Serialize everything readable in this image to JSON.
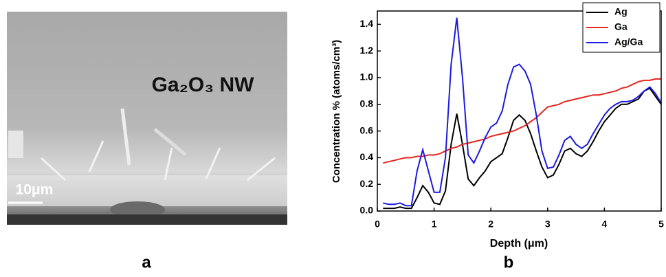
{
  "image": {
    "label": "Ga₂O₃ NW",
    "scale_bar": "10μm",
    "panel_label": "a"
  },
  "chart_data": {
    "type": "line",
    "panel_label": "b",
    "x_label": "Depth (μm)",
    "y_label": "Concentration % (atoms/cm³)",
    "xlim": [
      0,
      5
    ],
    "xticks": [
      0,
      1,
      2,
      3,
      4,
      5
    ],
    "ylim": [
      0,
      1.5
    ],
    "yticks": [
      {
        "value": 0,
        "label": "0.0"
      },
      0.2,
      0.4,
      0.6,
      0.8,
      {
        "value": 1,
        "label": "1.0"
      },
      1.2,
      1.4
    ],
    "legend": "top-right",
    "x": [
      0.1,
      0.2,
      0.3,
      0.4,
      0.5,
      0.6,
      0.7,
      0.8,
      0.9,
      1.0,
      1.1,
      1.2,
      1.3,
      1.4,
      1.5,
      1.6,
      1.7,
      1.8,
      1.9,
      2.0,
      2.1,
      2.2,
      2.3,
      2.4,
      2.5,
      2.6,
      2.7,
      2.8,
      2.9,
      3.0,
      3.1,
      3.2,
      3.3,
      3.4,
      3.5,
      3.6,
      3.7,
      3.8,
      3.9,
      4.0,
      4.1,
      4.2,
      4.3,
      4.4,
      4.5,
      4.6,
      4.7,
      4.8,
      4.9,
      5.0
    ],
    "series": [
      {
        "name": "Ag",
        "color": "#000000",
        "values": [
          0.02,
          0.02,
          0.02,
          0.03,
          0.02,
          0.02,
          0.1,
          0.19,
          0.14,
          0.06,
          0.05,
          0.15,
          0.5,
          0.73,
          0.5,
          0.24,
          0.19,
          0.25,
          0.3,
          0.37,
          0.4,
          0.43,
          0.55,
          0.68,
          0.72,
          0.68,
          0.58,
          0.45,
          0.33,
          0.25,
          0.27,
          0.35,
          0.45,
          0.47,
          0.43,
          0.41,
          0.45,
          0.52,
          0.6,
          0.67,
          0.72,
          0.77,
          0.8,
          0.8,
          0.82,
          0.84,
          0.9,
          0.92,
          0.86,
          0.8
        ]
      },
      {
        "name": "Ga",
        "color": "#e8261e",
        "values": [
          0.36,
          0.37,
          0.38,
          0.39,
          0.4,
          0.4,
          0.41,
          0.41,
          0.42,
          0.42,
          0.43,
          0.45,
          0.47,
          0.48,
          0.5,
          0.51,
          0.52,
          0.53,
          0.54,
          0.56,
          0.57,
          0.58,
          0.59,
          0.6,
          0.62,
          0.64,
          0.67,
          0.7,
          0.74,
          0.78,
          0.79,
          0.8,
          0.82,
          0.83,
          0.84,
          0.85,
          0.86,
          0.87,
          0.87,
          0.88,
          0.89,
          0.9,
          0.92,
          0.93,
          0.95,
          0.97,
          0.98,
          0.98,
          0.99,
          0.99
        ]
      },
      {
        "name": "Ag/Ga",
        "color": "#1a1adf",
        "values": [
          0.06,
          0.05,
          0.05,
          0.06,
          0.04,
          0.04,
          0.3,
          0.46,
          0.3,
          0.14,
          0.14,
          0.4,
          1.1,
          1.45,
          1.0,
          0.42,
          0.36,
          0.45,
          0.55,
          0.63,
          0.66,
          0.75,
          0.95,
          1.08,
          1.1,
          1.05,
          0.95,
          0.72,
          0.45,
          0.32,
          0.33,
          0.42,
          0.53,
          0.56,
          0.5,
          0.47,
          0.5,
          0.58,
          0.65,
          0.72,
          0.77,
          0.8,
          0.82,
          0.82,
          0.83,
          0.86,
          0.9,
          0.93,
          0.88,
          0.81
        ]
      }
    ]
  }
}
